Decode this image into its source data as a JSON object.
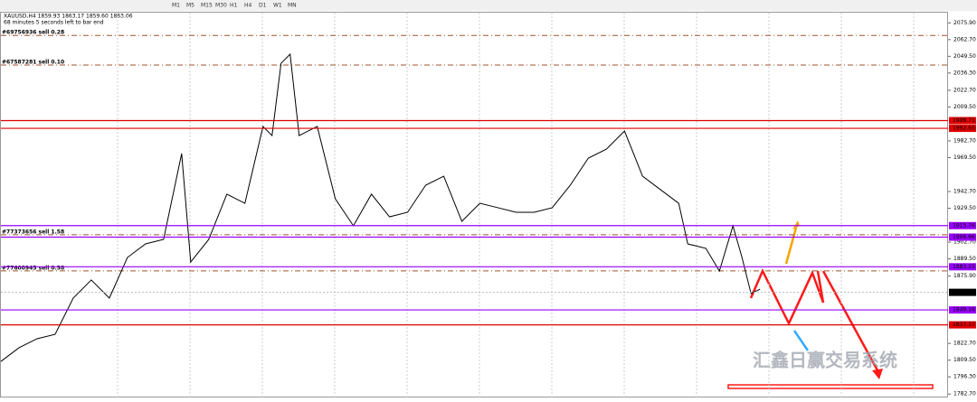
{
  "toolbar": {
    "timeframes": [
      "M1",
      "M5",
      "M15",
      "M30",
      "H1",
      "H4",
      "D1",
      "W1",
      "MN"
    ]
  },
  "watermark": "汇鑫日赢交易系统",
  "chart_data": {
    "type": "line",
    "title": "XAUUSD,H4 1859.93 1863.17 1859.60 1863.06",
    "subtitle": "68 minutes 5 seconds left to bar end",
    "color": "#000000",
    "x": [
      0,
      2,
      4,
      6,
      8,
      10,
      12,
      14,
      16,
      18,
      20,
      21,
      23,
      25,
      27,
      29,
      30,
      31,
      32,
      33,
      35,
      37,
      39,
      41,
      43,
      45,
      47,
      49,
      51,
      53,
      55,
      57,
      59,
      61,
      63,
      65,
      67,
      69,
      71,
      73,
      75,
      76,
      78,
      79.5,
      81,
      82,
      83,
      84
    ],
    "values": [
      1808.5,
      1819.3,
      1826.4,
      1829.9,
      1858.5,
      1872.8,
      1858.5,
      1890.6,
      1901.3,
      1904.9,
      1972.7,
      1887.0,
      1904.9,
      1940.6,
      1933.4,
      1994.1,
      1986.9,
      2044.0,
      2051.2,
      1986.9,
      1994.1,
      1937.0,
      1915.6,
      1940.6,
      1922.7,
      1926.3,
      1947.7,
      1954.8,
      1919.2,
      1933.4,
      1929.9,
      1926.3,
      1926.3,
      1929.9,
      1947.7,
      1969.1,
      1976.2,
      1990.5,
      1954.8,
      1944.1,
      1933.4,
      1901.3,
      1897.8,
      1879.9,
      1915.6,
      1890.6,
      1862.1,
      1865.6
    ],
    "xlim": [
      0,
      104.8
    ],
    "ylim": [
      1780,
      2084
    ],
    "yticks": [
      {
        "value": 2075.9,
        "label": "2075.90"
      },
      {
        "value": 2062.7,
        "label": "2062.70"
      },
      {
        "value": 2049.5,
        "label": "2049.50"
      },
      {
        "value": 2036.3,
        "label": "2036.30"
      },
      {
        "value": 2022.7,
        "label": "2022.70"
      },
      {
        "value": 2009.5,
        "label": "2009.50"
      },
      {
        "value": 1982.7,
        "label": "1982.70"
      },
      {
        "value": 1969.5,
        "label": "1969.50"
      },
      {
        "value": 1942.7,
        "label": "1942.70"
      },
      {
        "value": 1929.5,
        "label": "1929.50"
      },
      {
        "value": 1902.7,
        "label": "1902.70"
      },
      {
        "value": 1889.5,
        "label": "1889.50"
      },
      {
        "value": 1875.9,
        "label": "1875.90"
      },
      {
        "value": 1822.7,
        "label": "1822.70"
      },
      {
        "value": 1809.5,
        "label": "1809.50"
      },
      {
        "value": 1796.3,
        "label": "1796.30"
      },
      {
        "value": 1782.7,
        "label": "1782.70"
      }
    ],
    "levels": [
      {
        "value": 1998.71,
        "label": "1998.71",
        "color": "#e00000"
      },
      {
        "value": 1992.6,
        "label": "1992.60",
        "color": "#e00000"
      },
      {
        "value": 1915.76,
        "label": "1915.76",
        "color": "#9900ff"
      },
      {
        "value": 1906.66,
        "label": "1906.66",
        "color": "#9900ff"
      },
      {
        "value": 1883.25,
        "label": "1883.25",
        "color": "#9900ff"
      },
      {
        "value": 1849.16,
        "label": "1849.16",
        "color": "#9900ff"
      },
      {
        "value": 1837.37,
        "label": "1837.37",
        "color": "#e00000"
      }
    ],
    "current_price": {
      "value": 1863.06,
      "label": "1863.06"
    },
    "orders": [
      {
        "value": 2066,
        "label": "#69756936 sell 0.28"
      },
      {
        "value": 2042.6,
        "label": "#67587281 sell 0.10"
      },
      {
        "value": 1908.5,
        "label": "#77373656 sell 1.58"
      },
      {
        "value": 1880,
        "label": "#77600945 sell 0.58"
      }
    ]
  }
}
